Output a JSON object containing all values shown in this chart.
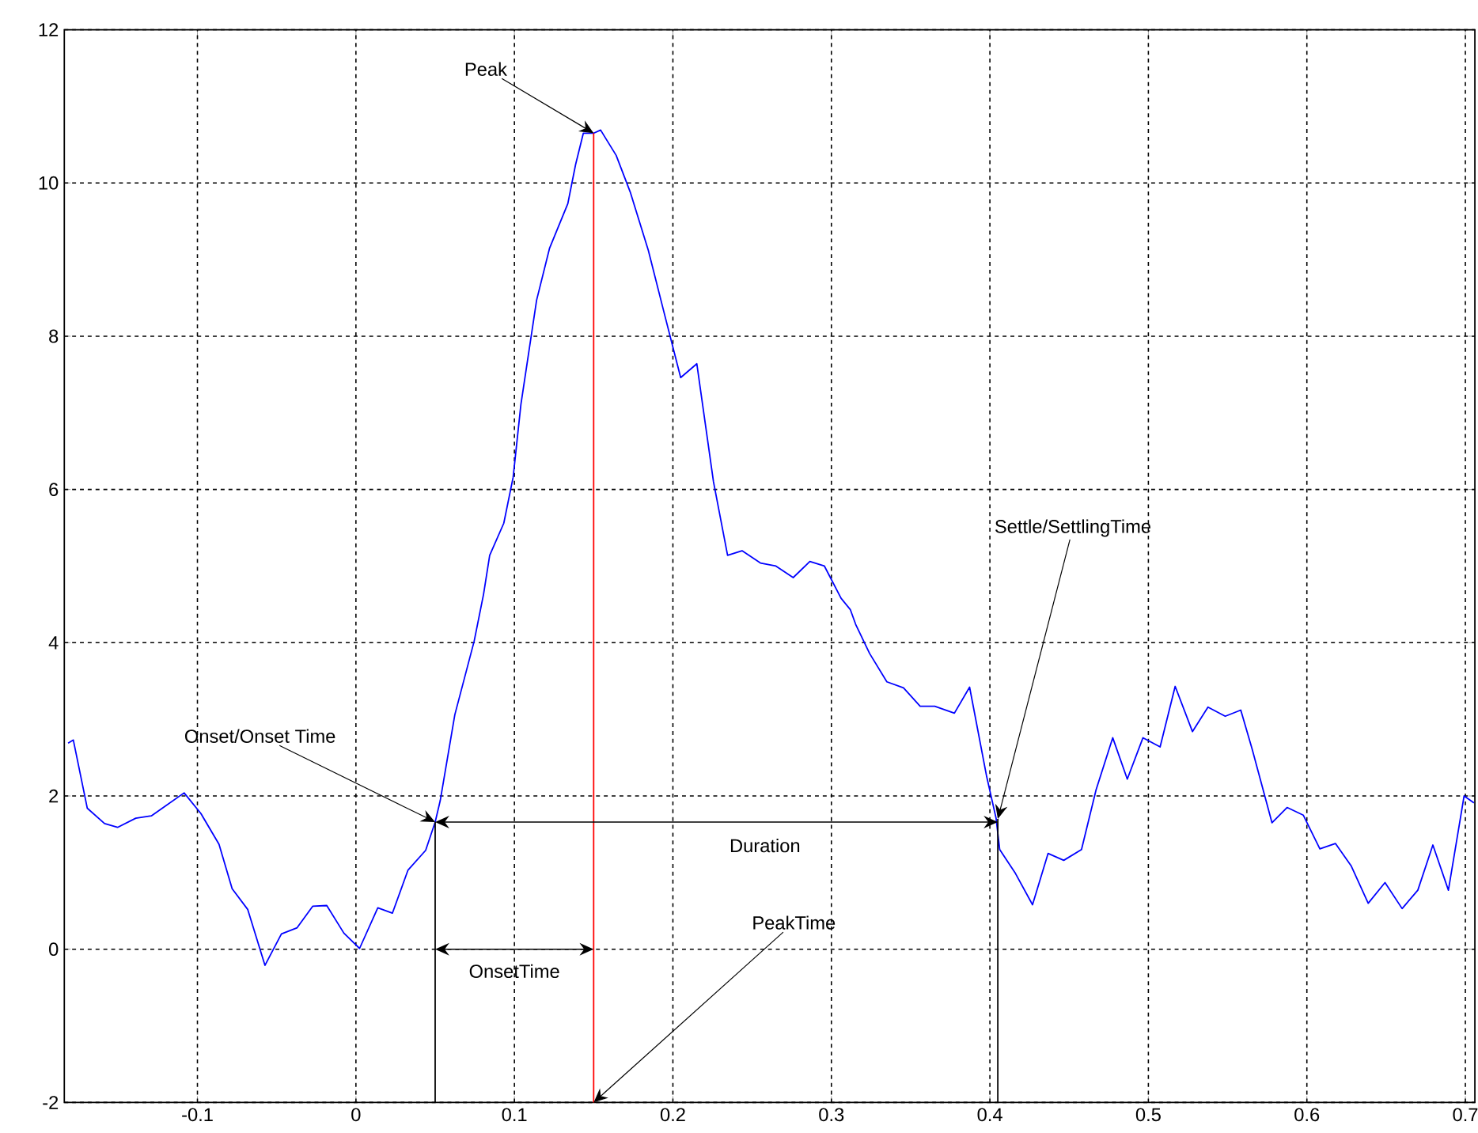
{
  "chart_data": {
    "type": "line",
    "x": [
      -0.1816,
      -0.1783,
      -0.1695,
      -0.1586,
      -0.1504,
      -0.1389,
      -0.1291,
      -0.1084,
      -0.0978,
      -0.0864,
      -0.0781,
      -0.0683,
      -0.0574,
      -0.047,
      -0.0371,
      -0.0273,
      -0.0184,
      -0.0076,
      0.0023,
      0.0138,
      0.023,
      0.0328,
      0.044,
      0.05,
      0.0532,
      0.0624,
      0.0746,
      0.0805,
      0.0844,
      0.0933,
      0.0992,
      0.1041,
      0.114,
      0.1222,
      0.1337,
      0.1386,
      0.1435,
      0.1501,
      0.1544,
      0.1642,
      0.1731,
      0.1845,
      0.1944,
      0.2049,
      0.2151,
      0.2256,
      0.2345,
      0.2436,
      0.2552,
      0.265,
      0.2759,
      0.2864,
      0.2956,
      0.3061,
      0.312,
      0.3153,
      0.3241,
      0.335,
      0.3455,
      0.356,
      0.3652,
      0.3776,
      0.3872,
      0.398,
      0.4039,
      0.4062,
      0.4161,
      0.4269,
      0.4367,
      0.4466,
      0.4578,
      0.467,
      0.4775,
      0.4867,
      0.4966,
      0.5074,
      0.5169,
      0.5278,
      0.5376,
      0.5485,
      0.5583,
      0.5655,
      0.578,
      0.5875,
      0.5977,
      0.6082,
      0.618,
      0.6279,
      0.6387,
      0.6493,
      0.6601,
      0.67,
      0.6795,
      0.6893,
      0.6992,
      0.7054
    ],
    "series": [
      {
        "color": "#0000ff",
        "values": [
          2.69,
          2.73,
          1.84,
          1.64,
          1.59,
          1.71,
          1.74,
          2.04,
          1.77,
          1.37,
          0.79,
          0.52,
          -0.21,
          0.2,
          0.28,
          0.56,
          0.57,
          0.21,
          0.01,
          0.54,
          0.47,
          1.03,
          1.29,
          1.66,
          1.94,
          3.06,
          4.02,
          4.63,
          5.14,
          5.56,
          6.16,
          7.11,
          8.47,
          9.15,
          9.73,
          10.24,
          10.65,
          10.65,
          10.69,
          10.36,
          9.88,
          9.12,
          8.31,
          7.46,
          7.64,
          6.1,
          5.14,
          5.2,
          5.04,
          5.0,
          4.85,
          5.06,
          5.0,
          4.58,
          4.43,
          4.24,
          3.86,
          3.49,
          3.41,
          3.17,
          3.17,
          3.08,
          3.42,
          2.25,
          1.71,
          1.3,
          0.99,
          0.58,
          1.25,
          1.16,
          1.3,
          2.08,
          2.76,
          2.22,
          2.76,
          2.64,
          3.43,
          2.84,
          3.16,
          3.04,
          3.12,
          2.61,
          1.65,
          1.85,
          1.75,
          1.31,
          1.38,
          1.09,
          0.6,
          0.87,
          0.53,
          0.77,
          1.36,
          0.77,
          2.0,
          1.91
        ]
      },
      {
        "color": "#ff0000",
        "x": [
          0.15,
          0.15
        ],
        "values": [
          -2,
          10.65
        ]
      },
      {
        "color": "#000000",
        "x": [
          0.05,
          0.05
        ],
        "values": [
          -2,
          1.66
        ]
      },
      {
        "color": "#000000",
        "x": [
          0.405,
          0.405
        ],
        "values": [
          -2,
          1.7
        ]
      }
    ],
    "xlim": [
      -0.184,
      0.706
    ],
    "ylim": [
      -2,
      12
    ],
    "xticks": [
      -0.1,
      0,
      0.1,
      0.2,
      0.3,
      0.4,
      0.5,
      0.6,
      0.7
    ],
    "yticks": [
      -2,
      0,
      2,
      4,
      6,
      8,
      10,
      12
    ],
    "grid": true,
    "marker": "none",
    "line_style": "solid",
    "annotations": [
      {
        "text": "Peak",
        "x": 0.15,
        "y": 10.65
      },
      {
        "text": "PeakTime",
        "x": 0.15,
        "y": -2
      },
      {
        "text": "Onset/Onset Time",
        "x": 0.05,
        "y": 1.66
      },
      {
        "text": "Settle/SettlingTime",
        "x": 0.405,
        "y": 1.7
      },
      "Duration",
      "OnsetTime"
    ]
  }
}
